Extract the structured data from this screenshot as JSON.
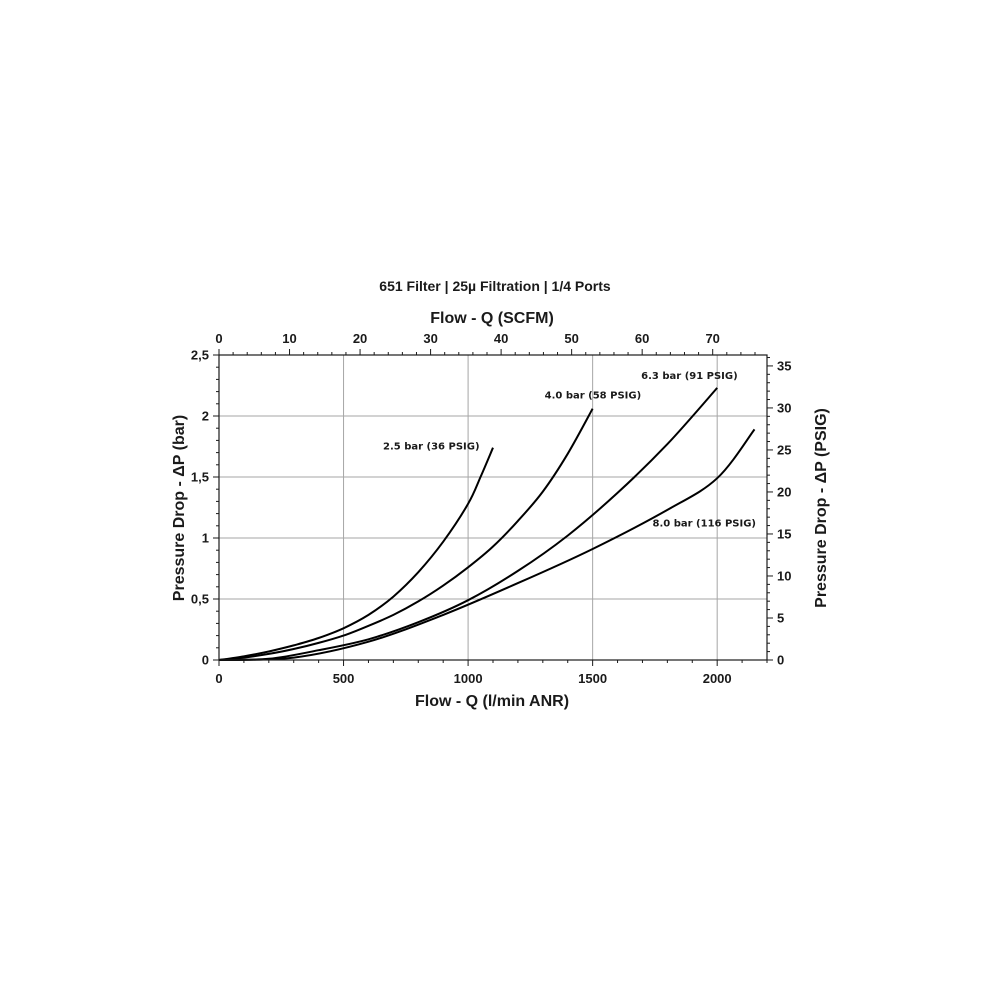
{
  "chart_data": {
    "type": "line",
    "title": "651 Filter | 25µ Filtration | 1/4 Ports",
    "xlabel": "Flow - Q (l/min ANR)",
    "ylabel": "Pressure Drop - ΔP (bar)",
    "x2label": "Flow - Q (SCFM)",
    "y2label": "Pressure Drop - ΔP (PSIG)",
    "xlim": [
      0,
      2200
    ],
    "ylim": [
      0,
      2.5
    ],
    "x2lim": [
      0,
      77.7
    ],
    "y2lim": [
      0,
      36.3
    ],
    "x_ticks": [
      "0",
      "500",
      "1000",
      "1500",
      "2000"
    ],
    "y_ticks": [
      "0",
      "0,5",
      "1",
      "1,5",
      "2",
      "2,5"
    ],
    "x2_ticks": [
      "0",
      "10",
      "20",
      "30",
      "40",
      "50",
      "60",
      "70"
    ],
    "y2_ticks": [
      "0",
      "5",
      "10",
      "15",
      "20",
      "25",
      "30",
      "35"
    ],
    "grid": true,
    "series": [
      {
        "name": "2.5 bar (36 PSIG)",
        "x": [
          0,
          100,
          200,
          300,
          400,
          500,
          600,
          700,
          800,
          900,
          1000,
          1050,
          1100
        ],
        "y": [
          0,
          0.03,
          0.07,
          0.12,
          0.18,
          0.26,
          0.37,
          0.52,
          0.72,
          0.97,
          1.28,
          1.5,
          1.74
        ]
      },
      {
        "name": "4.0 bar (58 PSIG)",
        "x": [
          0,
          100,
          200,
          300,
          400,
          500,
          600,
          700,
          800,
          900,
          1000,
          1100,
          1200,
          1300,
          1400,
          1500
        ],
        "y": [
          0,
          0.02,
          0.05,
          0.09,
          0.14,
          0.2,
          0.28,
          0.37,
          0.48,
          0.61,
          0.76,
          0.93,
          1.14,
          1.38,
          1.69,
          2.06
        ]
      },
      {
        "name": "6.3 bar (91 PSIG)",
        "x": [
          0,
          200,
          400,
          600,
          800,
          1000,
          1200,
          1400,
          1600,
          1800,
          2000
        ],
        "y": [
          0,
          0.01,
          0.08,
          0.17,
          0.31,
          0.49,
          0.73,
          1.02,
          1.37,
          1.77,
          2.23
        ]
      },
      {
        "name": "8.0 bar (116 PSIG)",
        "x": [
          0,
          300,
          600,
          900,
          1200,
          1500,
          1800,
          2000,
          2150
        ],
        "y": [
          0,
          0.02,
          0.15,
          0.37,
          0.63,
          0.91,
          1.23,
          1.49,
          1.89
        ]
      }
    ]
  }
}
